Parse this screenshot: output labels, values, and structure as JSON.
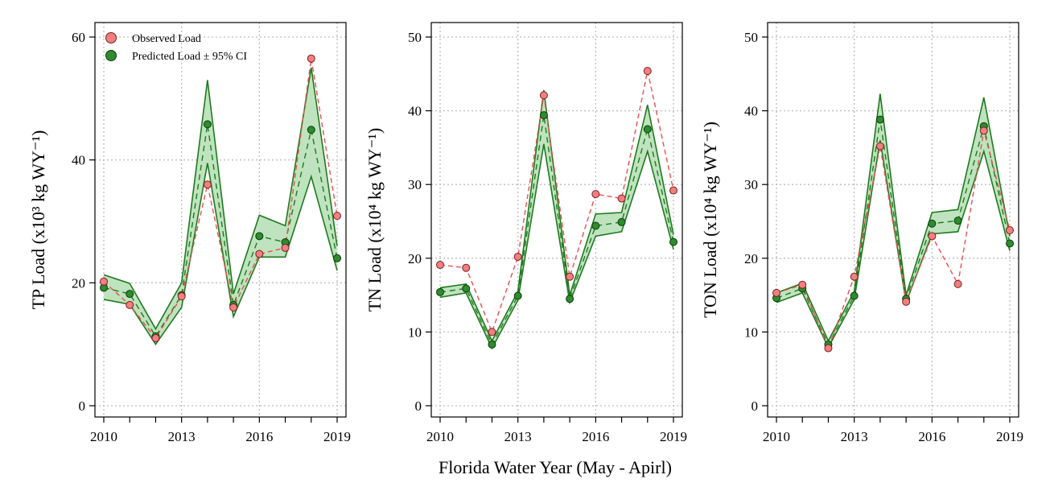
{
  "figure": {
    "xlabel": "Florida Water Year (May - Apirl)",
    "legend": {
      "observed": "Observed Load",
      "predicted": "Predicted Load ± 95% CI",
      "placement": "top-left"
    },
    "colors": {
      "observed": "#f08080",
      "observed_line": "#e8504f",
      "predicted": "#2e8b2e",
      "predicted_fill": "#bfe3bf",
      "predicted_line": "#1f7a1f",
      "grid": "#bdbdbd"
    }
  },
  "chart_data": [
    {
      "type": "line",
      "ylabel": "TP Load (x10³ kg WY⁻¹)",
      "xlim": [
        2010,
        2019
      ],
      "ylim": [
        0,
        60
      ],
      "yticks": [
        0,
        20,
        40,
        60
      ],
      "xticks": [
        2010,
        2013,
        2016,
        2019
      ],
      "grid": true,
      "x": [
        2010,
        2011,
        2012,
        2013,
        2014,
        2015,
        2016,
        2017,
        2018,
        2019
      ],
      "series": [
        {
          "name": "Observed Load",
          "values": [
            20.2,
            16.4,
            11.0,
            17.8,
            36.0,
            16.0,
            24.7,
            25.7,
            56.5,
            30.9
          ]
        },
        {
          "name": "Predicted Load ± 95% CI",
          "values": [
            19.2,
            18.2,
            11.3,
            18.0,
            45.8,
            16.4,
            27.6,
            26.6,
            44.9,
            24.0
          ],
          "lower": [
            17.3,
            16.5,
            10.0,
            16.0,
            39.5,
            14.5,
            24.2,
            24.2,
            37.3,
            22.0
          ],
          "upper": [
            21.3,
            19.9,
            12.5,
            20.0,
            53.0,
            18.2,
            31.0,
            29.3,
            55.0,
            26.0
          ]
        }
      ]
    },
    {
      "type": "line",
      "ylabel": "TN Load (x10⁴ kg WY⁻¹)",
      "xlim": [
        2010,
        2019
      ],
      "ylim": [
        0,
        50
      ],
      "yticks": [
        0,
        10,
        20,
        30,
        40,
        50
      ],
      "xticks": [
        2010,
        2013,
        2016,
        2019
      ],
      "grid": true,
      "x": [
        2010,
        2011,
        2012,
        2013,
        2014,
        2015,
        2016,
        2017,
        2018,
        2019
      ],
      "series": [
        {
          "name": "Observed Load",
          "values": [
            19.1,
            18.7,
            10.0,
            20.2,
            42.1,
            17.5,
            28.7,
            28.1,
            45.4,
            29.2
          ]
        },
        {
          "name": "Predicted Load ± 95% CI",
          "values": [
            15.4,
            15.9,
            8.3,
            14.9,
            39.4,
            14.5,
            24.4,
            24.9,
            37.5,
            22.2
          ],
          "lower": [
            14.7,
            15.3,
            7.8,
            14.3,
            35.5,
            14.0,
            23.0,
            23.6,
            34.5,
            21.2
          ],
          "upper": [
            16.0,
            16.5,
            8.8,
            15.5,
            42.8,
            15.0,
            26.0,
            26.2,
            40.8,
            23.2
          ]
        }
      ]
    },
    {
      "type": "line",
      "ylabel": "TON Load (x10⁴ kg WY⁻¹)",
      "xlim": [
        2010,
        2019
      ],
      "ylim": [
        0,
        50
      ],
      "yticks": [
        0,
        10,
        20,
        30,
        40,
        50
      ],
      "xticks": [
        2010,
        2013,
        2016,
        2019
      ],
      "grid": true,
      "x": [
        2010,
        2011,
        2012,
        2013,
        2014,
        2015,
        2016,
        2017,
        2018,
        2019
      ],
      "series": [
        {
          "name": "Observed Load",
          "values": [
            15.3,
            16.4,
            7.8,
            17.5,
            35.2,
            14.1,
            23.0,
            16.5,
            37.3,
            23.8
          ]
        },
        {
          "name": "Predicted Load ± 95% CI",
          "values": [
            14.6,
            15.9,
            8.3,
            14.9,
            38.8,
            14.5,
            24.7,
            25.1,
            37.9,
            22.0
          ],
          "lower": [
            14.0,
            15.3,
            7.9,
            14.4,
            36.0,
            14.0,
            23.3,
            23.6,
            34.5,
            21.0
          ],
          "upper": [
            15.3,
            16.6,
            8.8,
            15.5,
            42.3,
            15.0,
            26.2,
            26.6,
            41.8,
            23.0
          ]
        }
      ]
    }
  ]
}
